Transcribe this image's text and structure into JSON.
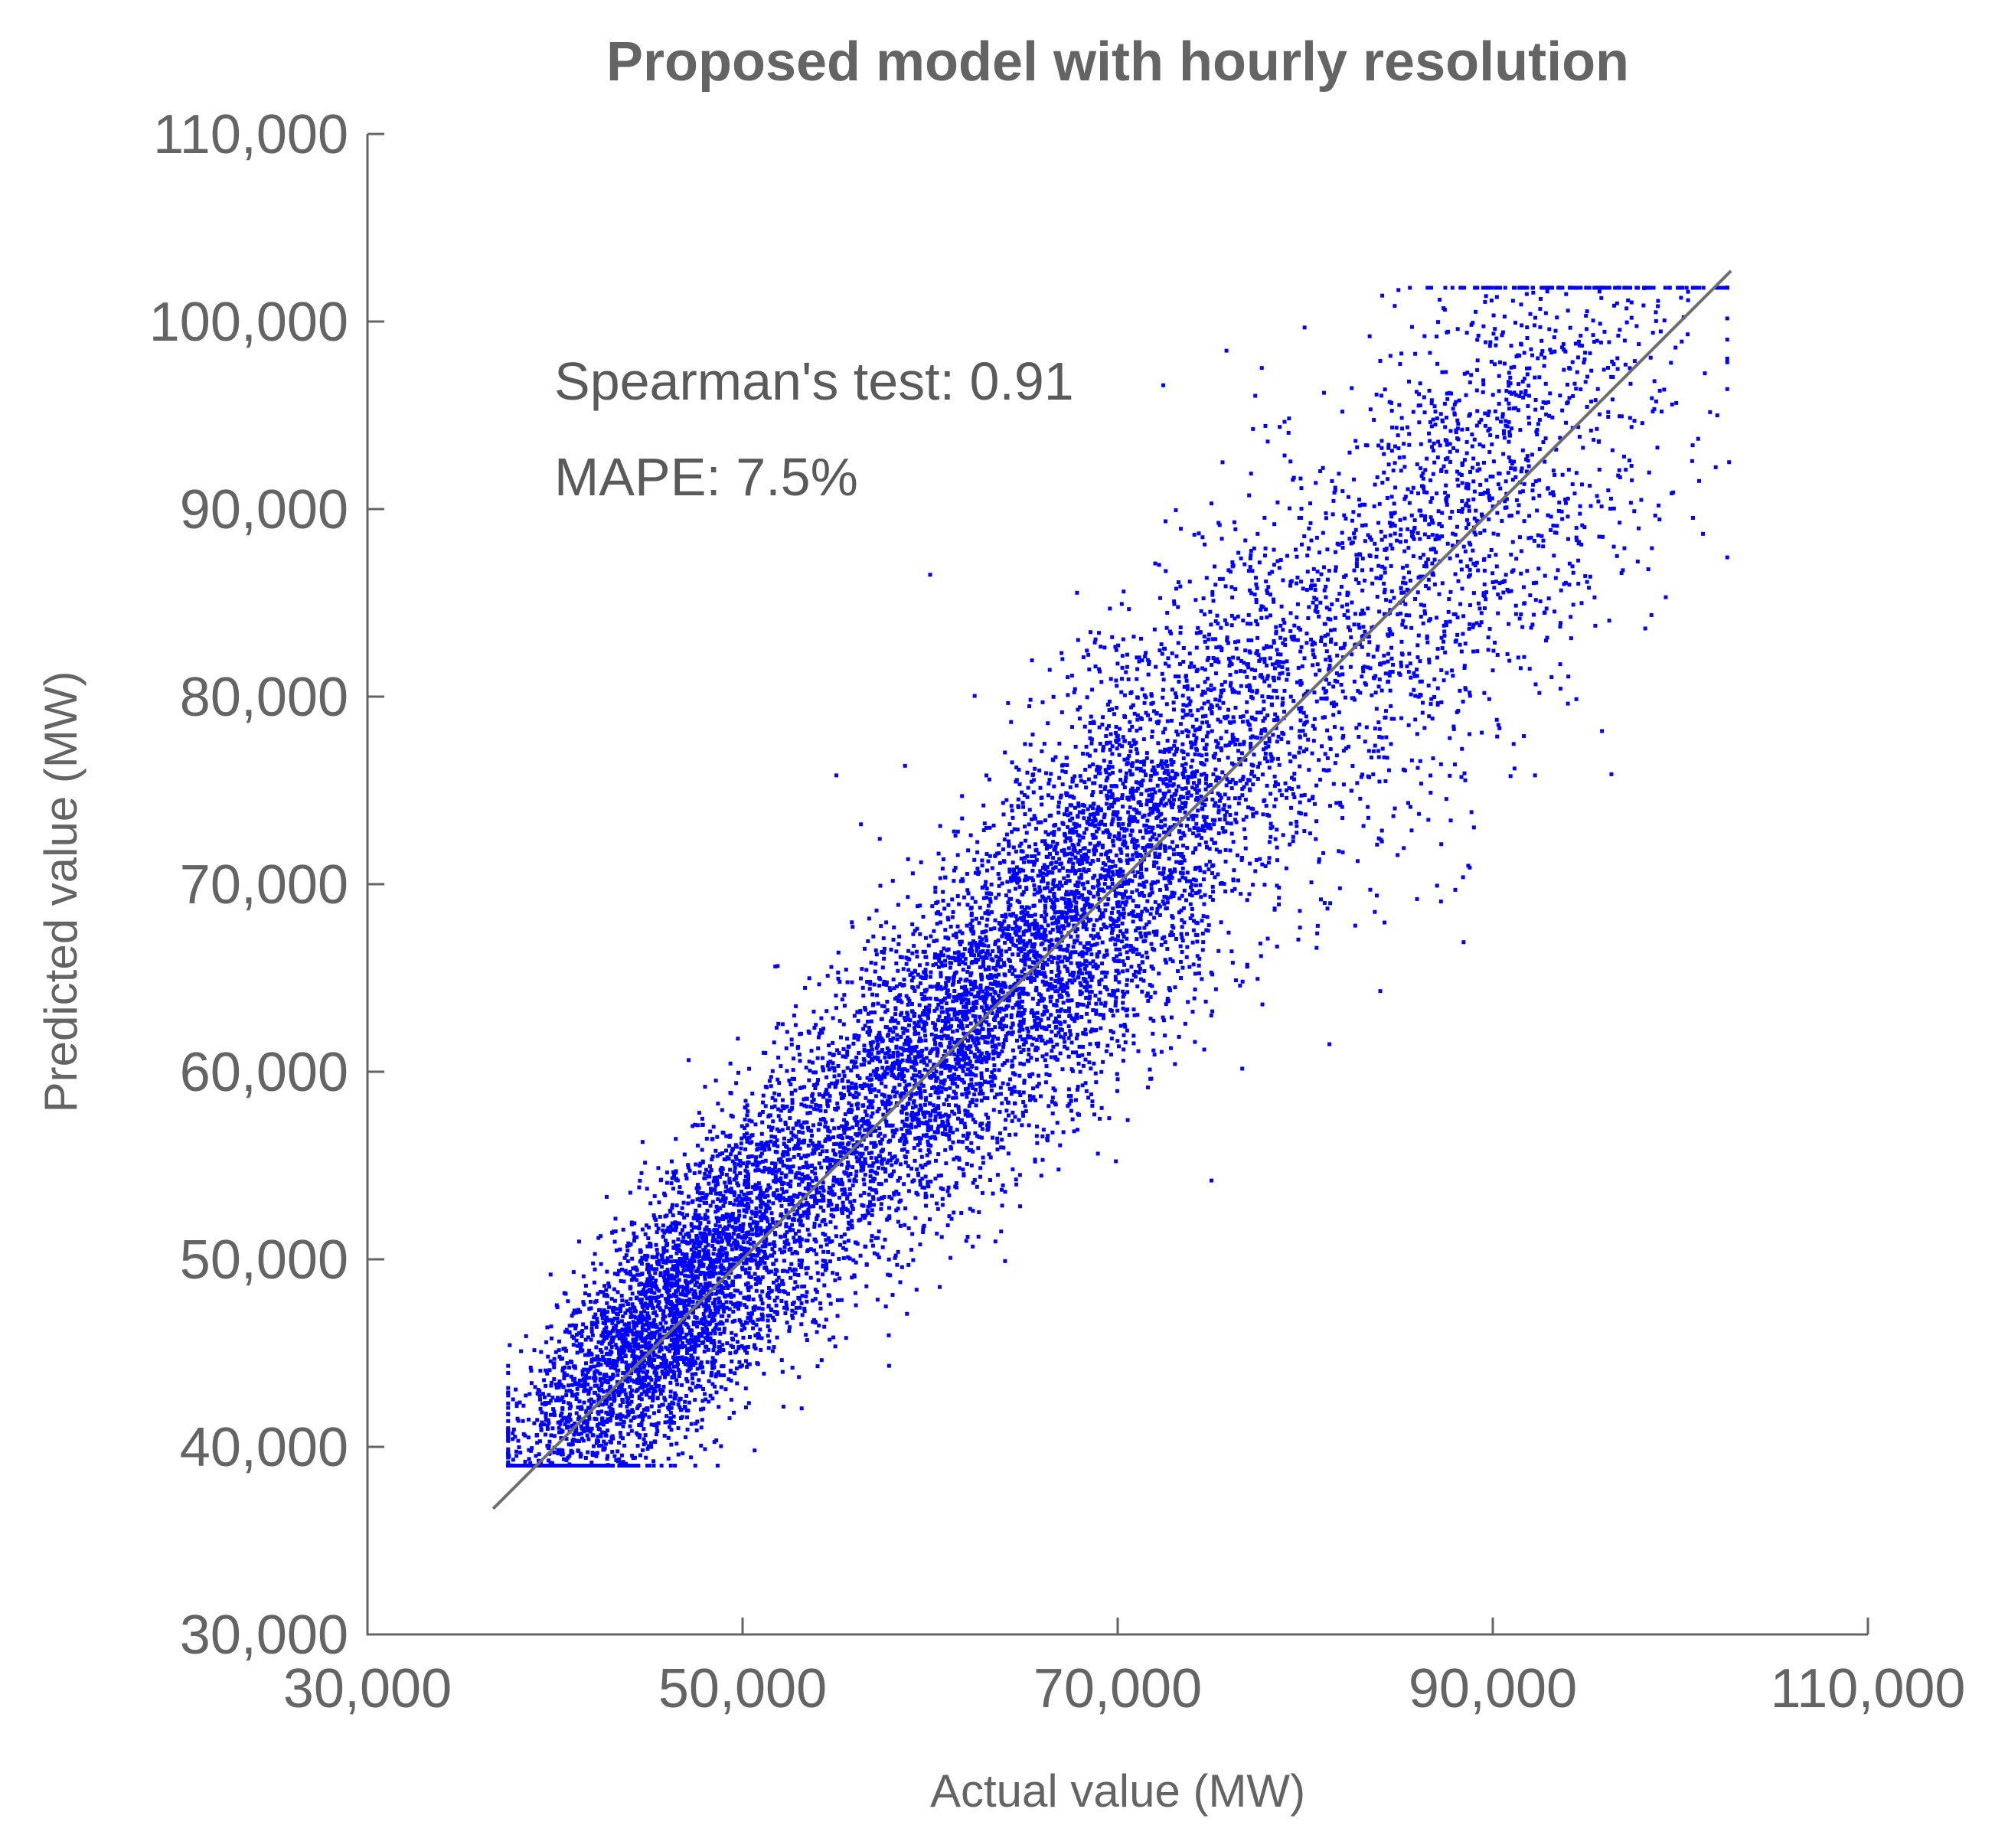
{
  "chart_data": {
    "type": "scatter",
    "title": "Proposed model with hourly resolution",
    "xlabel": "Actual value (MW)",
    "ylabel": "Predicted value (MW)",
    "xlim": [
      30000,
      110000
    ],
    "ylim": [
      30000,
      110000
    ],
    "xticks": [
      30000,
      50000,
      70000,
      90000,
      110000
    ],
    "xtick_labels": [
      "30,000",
      "50,000",
      "70,000",
      "90,000",
      "110,000"
    ],
    "yticks": [
      30000,
      40000,
      50000,
      60000,
      70000,
      80000,
      90000,
      100000,
      110000
    ],
    "ytick_labels": [
      "30,000",
      "40,000",
      "50,000",
      "60,000",
      "70,000",
      "80,000",
      "90,000",
      "100,000",
      "110,000"
    ],
    "grid": false,
    "colors": {
      "points": "#0000ff",
      "reference_line": "#6e6e6e",
      "text": "#646464"
    },
    "annotations": [
      "Spearman's test: 0.91",
      "MAPE: 7.5%"
    ],
    "reference_line": {
      "x": [
        36700,
        102700
      ],
      "y": [
        36700,
        102700
      ]
    },
    "series": [
      {
        "values": [
          [
            38000,
            41500
          ],
          [
            39200,
            40300
          ],
          [
            40100,
            43200
          ],
          [
            41000,
            45800
          ],
          [
            41800,
            44100
          ],
          [
            42500,
            47200
          ],
          [
            43100,
            42800
          ],
          [
            43800,
            46500
          ],
          [
            44200,
            49100
          ],
          [
            44800,
            45600
          ],
          [
            45300,
            48200
          ],
          [
            45900,
            51000
          ],
          [
            46400,
            46900
          ],
          [
            46900,
            49800
          ],
          [
            47500,
            52600
          ],
          [
            48100,
            47500
          ],
          [
            48700,
            50900
          ],
          [
            49300,
            54300
          ],
          [
            49800,
            51200
          ],
          [
            50400,
            56200
          ],
          [
            51000,
            53400
          ],
          [
            51600,
            58600
          ],
          [
            52100,
            55200
          ],
          [
            52700,
            60100
          ],
          [
            53300,
            57300
          ],
          [
            53900,
            62500
          ],
          [
            54400,
            58800
          ],
          [
            55000,
            63400
          ],
          [
            55600,
            60200
          ],
          [
            56200,
            61900
          ],
          [
            56800,
            64800
          ],
          [
            57300,
            59600
          ],
          [
            57900,
            62700
          ],
          [
            58500,
            66100
          ],
          [
            59100,
            61300
          ],
          [
            59700,
            63900
          ],
          [
            60200,
            67500
          ],
          [
            60800,
            62400
          ],
          [
            61400,
            65300
          ],
          [
            62000,
            68900
          ],
          [
            62600,
            64200
          ],
          [
            63100,
            66700
          ],
          [
            63700,
            70300
          ],
          [
            64300,
            65600
          ],
          [
            64900,
            68100
          ],
          [
            65500,
            71200
          ],
          [
            66000,
            67300
          ],
          [
            66600,
            69400
          ],
          [
            67200,
            72600
          ],
          [
            67800,
            68600
          ],
          [
            68400,
            70100
          ],
          [
            68900,
            73800
          ],
          [
            69500,
            69200
          ],
          [
            70100,
            71300
          ],
          [
            70700,
            74900
          ],
          [
            71300,
            70400
          ],
          [
            71800,
            72800
          ],
          [
            72400,
            76200
          ],
          [
            73000,
            71600
          ],
          [
            73600,
            74300
          ],
          [
            74200,
            77800
          ],
          [
            74700,
            73100
          ],
          [
            75300,
            75700
          ],
          [
            75900,
            79300
          ],
          [
            76500,
            74600
          ],
          [
            77100,
            77200
          ],
          [
            77600,
            81100
          ],
          [
            78200,
            76800
          ],
          [
            78800,
            79900
          ],
          [
            79400,
            83200
          ],
          [
            80000,
            78600
          ],
          [
            80500,
            82100
          ],
          [
            81100,
            85300
          ],
          [
            81700,
            80800
          ],
          [
            82300,
            84200
          ],
          [
            82900,
            87600
          ],
          [
            83400,
            83200
          ],
          [
            84000,
            86300
          ],
          [
            84600,
            89600
          ],
          [
            85200,
            85100
          ],
          [
            85800,
            88400
          ],
          [
            86300,
            91200
          ],
          [
            86900,
            87300
          ],
          [
            87500,
            90500
          ],
          [
            88100,
            93100
          ],
          [
            88700,
            89200
          ],
          [
            89200,
            92400
          ],
          [
            89800,
            95200
          ],
          [
            90400,
            91100
          ],
          [
            91000,
            94300
          ],
          [
            91600,
            96800
          ],
          [
            92100,
            92900
          ],
          [
            92700,
            95700
          ],
          [
            93300,
            98400
          ],
          [
            93900,
            94600
          ],
          [
            94500,
            97300
          ],
          [
            95000,
            99600
          ],
          [
            95600,
            96400
          ],
          [
            96200,
            98900
          ],
          [
            97400,
            100200
          ],
          [
            99500,
            97800
          ],
          [
            101000,
            91500
          ],
          [
            102600,
            92500
          ],
          [
            88000,
            69700
          ],
          [
            84000,
            64300
          ],
          [
            75000,
            54200
          ],
          [
            64000,
            53600
          ],
          [
            60000,
            86500
          ],
          [
            55000,
            75800
          ],
          [
            48000,
            59200
          ],
          [
            45000,
            51700
          ],
          [
            40500,
            48200
          ],
          [
            42000,
            39600
          ],
          [
            44000,
            41100
          ],
          [
            47000,
            44400
          ],
          [
            50500,
            47100
          ],
          [
            53500,
            50500
          ],
          [
            57000,
            52900
          ],
          [
            61000,
            56600
          ],
          [
            65000,
            60400
          ],
          [
            68500,
            63900
          ],
          [
            72000,
            67300
          ],
          [
            76000,
            71800
          ],
          [
            79000,
            74600
          ],
          [
            82000,
            77800
          ],
          [
            86000,
            82100
          ],
          [
            90000,
            86100
          ],
          [
            94000,
            89600
          ],
          [
            97000,
            92800
          ],
          [
            99000,
            95200
          ],
          [
            63000,
            75800
          ],
          [
            66000,
            79700
          ],
          [
            69000,
            83400
          ],
          [
            72000,
            87100
          ],
          [
            75000,
            90300
          ],
          [
            78000,
            93600
          ],
          [
            81000,
            96200
          ],
          [
            84000,
            97900
          ],
          [
            87000,
            99200
          ],
          [
            92000,
            100400
          ],
          [
            54000,
            44300
          ],
          [
            58000,
            48100
          ],
          [
            62000,
            51200
          ],
          [
            66000,
            55300
          ],
          [
            70000,
            59600
          ],
          [
            74000,
            63200
          ],
          [
            78000,
            67100
          ],
          [
            82000,
            71700
          ],
          [
            86000,
            76200
          ],
          [
            90000,
            81400
          ]
        ]
      }
    ]
  }
}
